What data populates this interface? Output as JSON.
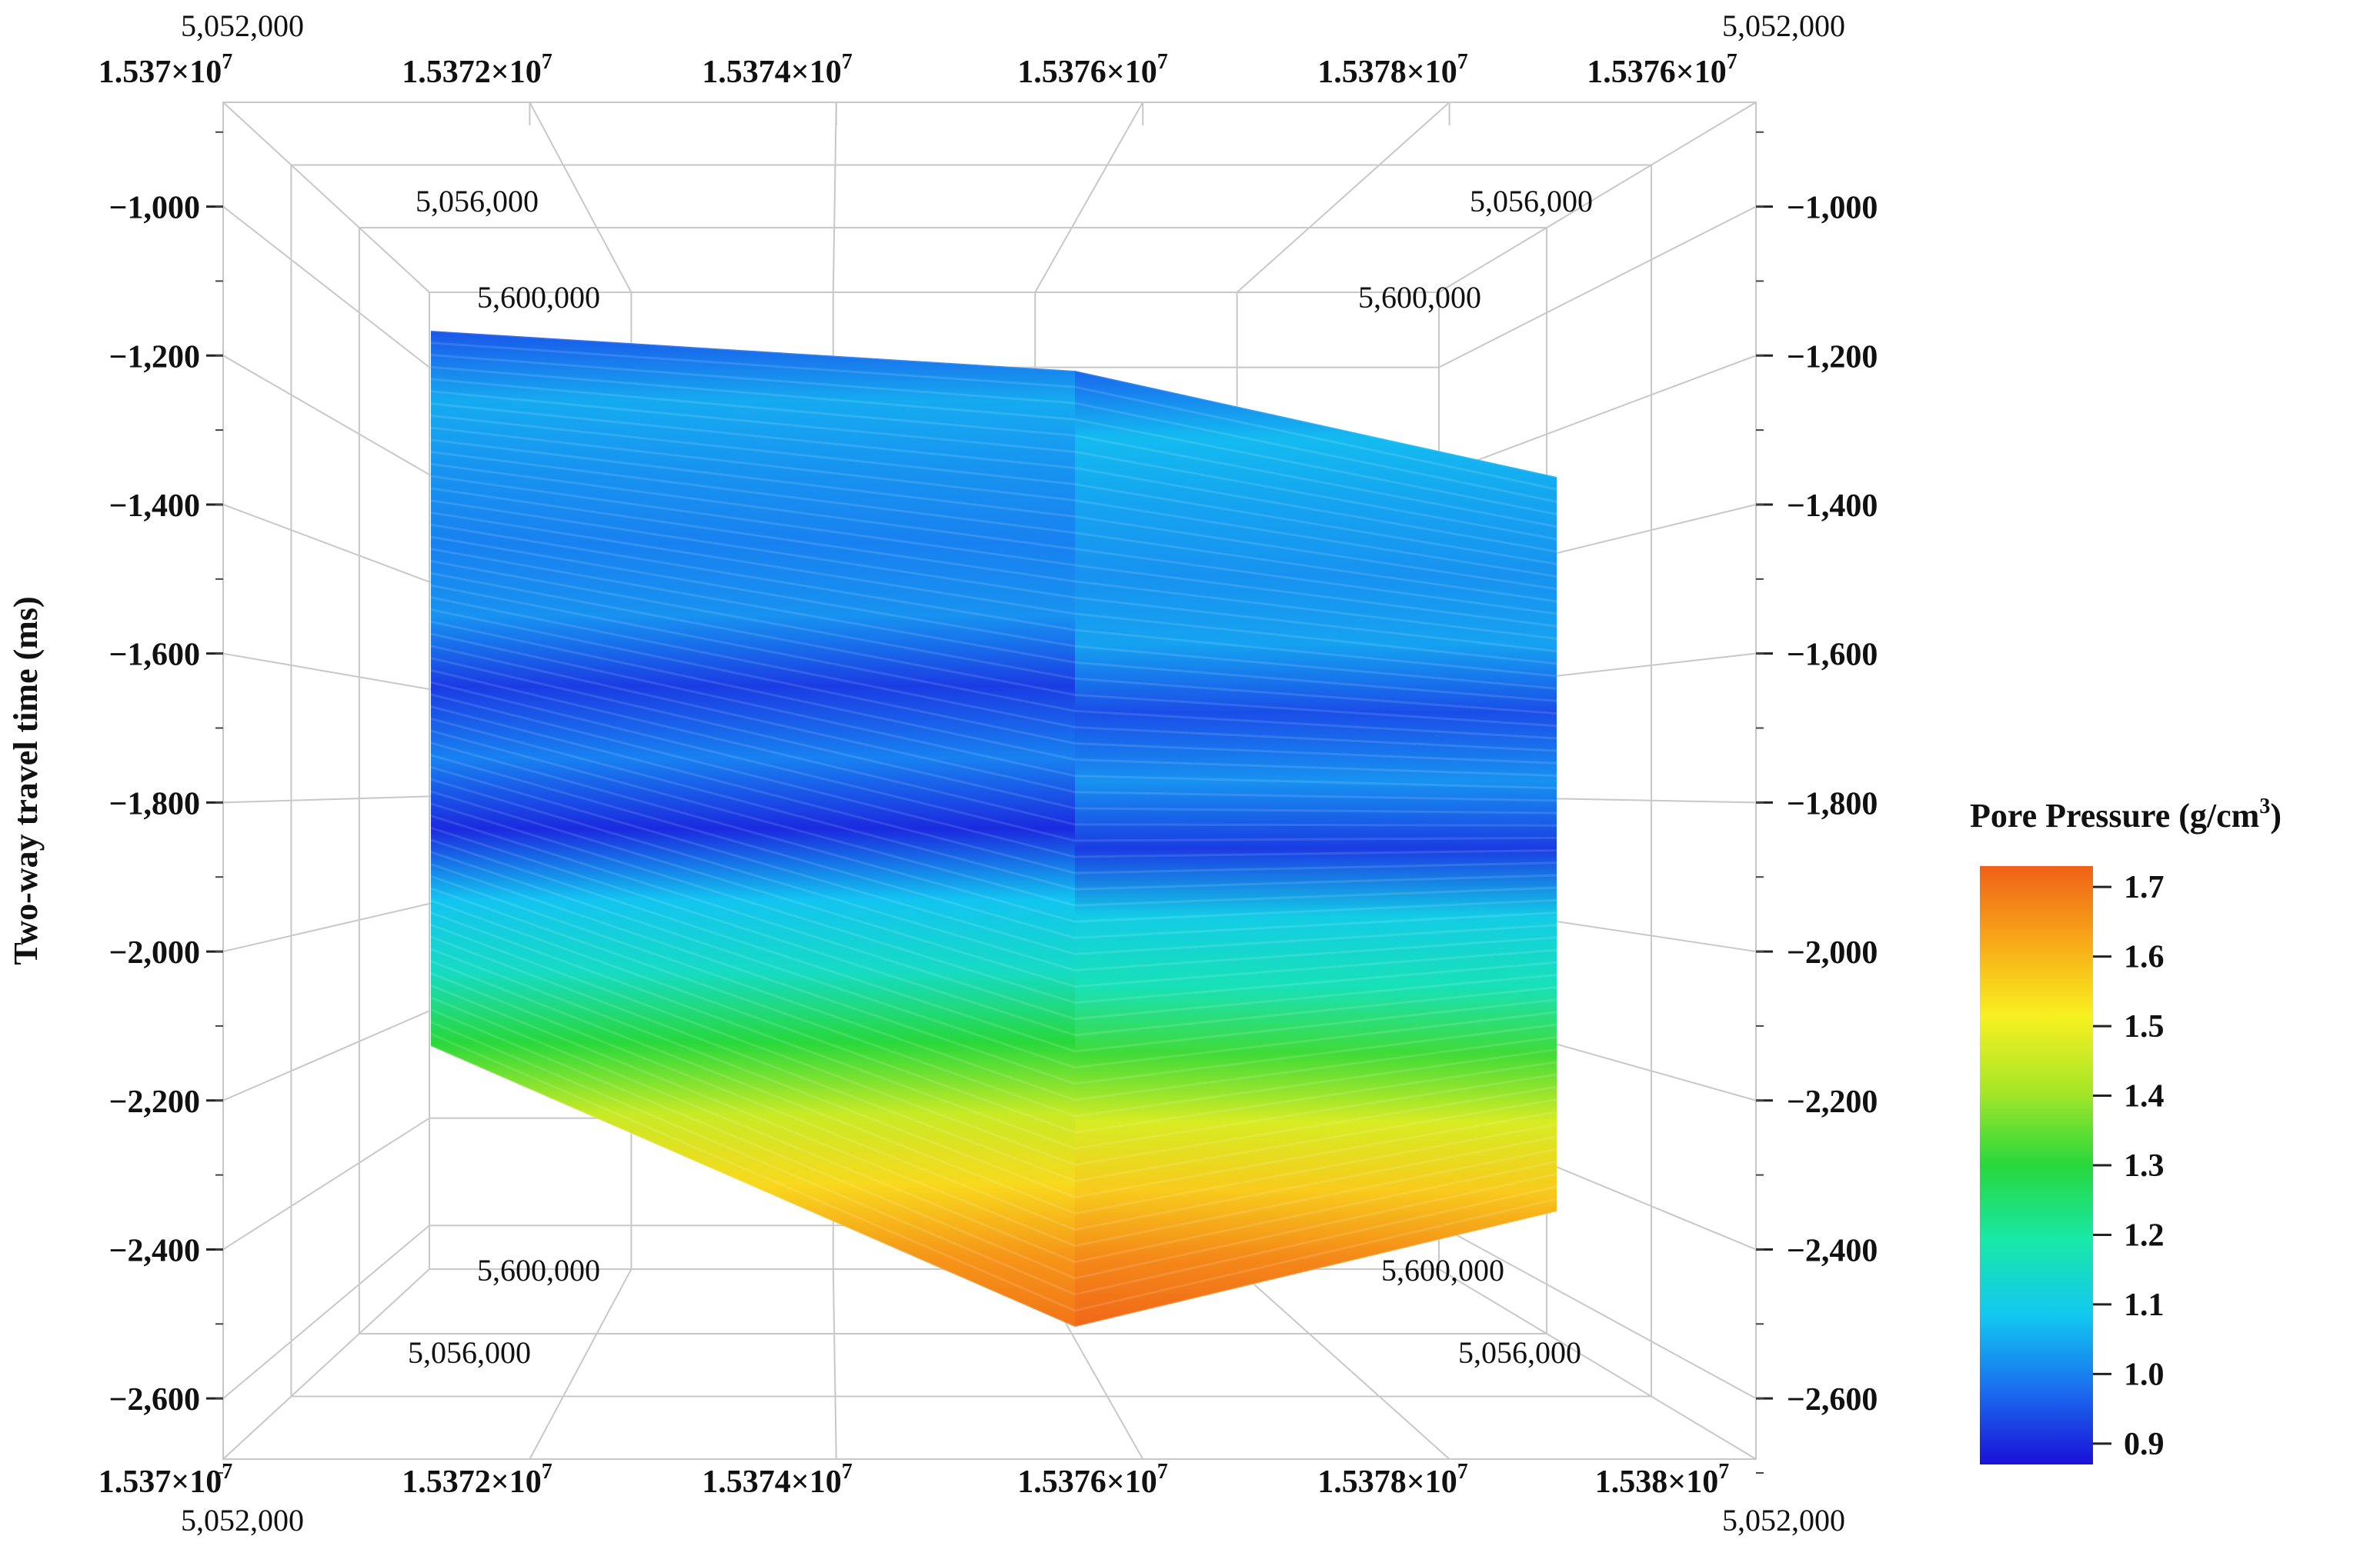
{
  "chart_data": {
    "type": "heatmap",
    "title": "",
    "ylabel": "Two-way travel time (ms)",
    "ylim": [
      -2700,
      -860
    ],
    "yticks": [
      -1000,
      -1200,
      -1400,
      -1600,
      -1800,
      -2000,
      -2200,
      -2400,
      -2600
    ],
    "ytick_labels": [
      "−1,000",
      "−1,200",
      "−1,400",
      "−1,600",
      "−1,800",
      "−2,000",
      "−2,200",
      "−2,400",
      "−2,600"
    ],
    "x_top_labels": [
      "1.537×10",
      "1.5372×10",
      "1.5374×10",
      "1.5376×10",
      "1.5378×10",
      "1.5376×10"
    ],
    "x_bottom_labels": [
      "1.537×10",
      "1.5372×10",
      "1.5374×10",
      "1.5376×10",
      "1.5378×10",
      "1.538×10"
    ],
    "x_exponent": "7",
    "corner_y_label": "5,052,000",
    "depth_labels_outer": "5,056,000",
    "depth_labels_inner": "5,600,000",
    "colorbar": {
      "title": "Pore Pressure (g/cm",
      "title_sup": "3",
      "title_close": ")",
      "ticks": [
        1.7,
        1.6,
        1.5,
        1.4,
        1.3,
        1.2,
        1.1,
        1.0,
        0.9
      ],
      "tick_labels": [
        "1.7",
        "1.6",
        "1.5",
        "1.4",
        "1.3",
        "1.2",
        "1.1",
        "1.0",
        "0.9"
      ],
      "range": [
        0.87,
        1.73
      ],
      "colors": [
        "#1a10d8",
        "#1a6ef0",
        "#12c8f0",
        "#18e8a8",
        "#28d83c",
        "#a8e628",
        "#f8f020",
        "#f8a818",
        "#f06018"
      ]
    },
    "pore_pressure_profile": {
      "description_levels_ms": [
        -1150,
        -1250,
        -1350,
        -1450,
        -1550,
        -1650,
        -1750,
        -1850,
        -1950,
        -2050,
        -2150,
        -2250,
        -2350,
        -2450,
        -2550
      ],
      "values": [
        0.95,
        1.05,
        1.02,
        1.0,
        1.02,
        0.92,
        1.0,
        0.9,
        1.08,
        1.15,
        1.3,
        1.45,
        1.55,
        1.65,
        1.7
      ]
    }
  }
}
